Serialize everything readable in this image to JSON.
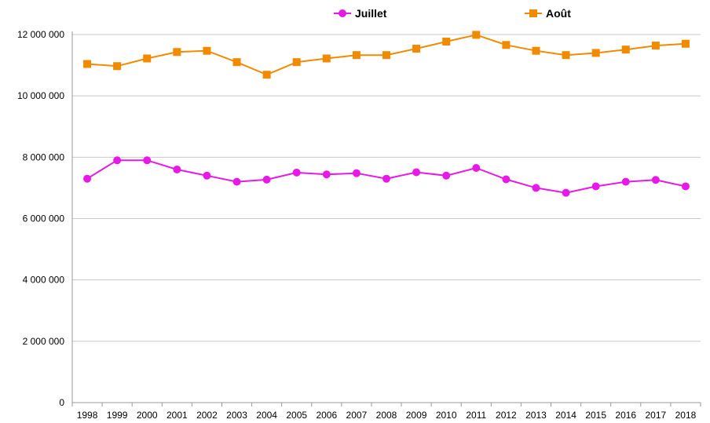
{
  "chart_data": {
    "type": "line",
    "title": "",
    "xlabel": "",
    "ylabel": "",
    "categories": [
      "1998",
      "1999",
      "2000",
      "2001",
      "2002",
      "2003",
      "2004",
      "2005",
      "2006",
      "2007",
      "2008",
      "2009",
      "2010",
      "2011",
      "2012",
      "2013",
      "2014",
      "2015",
      "2016",
      "2017",
      "2018"
    ],
    "y_ticks": [
      {
        "value": 0,
        "label": "0"
      },
      {
        "value": 2000000,
        "label": "2 000 000"
      },
      {
        "value": 4000000,
        "label": "4 000 000"
      },
      {
        "value": 6000000,
        "label": "6 000 000"
      },
      {
        "value": 8000000,
        "label": "8 000 000"
      },
      {
        "value": 10000000,
        "label": "10 000 000"
      },
      {
        "value": 12000000,
        "label": "12 000 000"
      }
    ],
    "ylim": [
      0,
      12000000
    ],
    "grid": "horizontal",
    "legend_position": "top",
    "series": [
      {
        "name": "Juillet",
        "color": "#e619e6",
        "marker": "circle",
        "values": [
          7300000,
          7900000,
          7900000,
          7600000,
          7400000,
          7200000,
          7270000,
          7500000,
          7440000,
          7480000,
          7300000,
          7510000,
          7400000,
          7650000,
          7280000,
          7000000,
          6840000,
          7050000,
          7200000,
          7260000,
          7050000
        ]
      },
      {
        "name": "Août",
        "color": "#f28a00",
        "marker": "square",
        "values": [
          11040000,
          10970000,
          11220000,
          11430000,
          11470000,
          11100000,
          10690000,
          11100000,
          11220000,
          11330000,
          11330000,
          11540000,
          11770000,
          11990000,
          11660000,
          11470000,
          11330000,
          11400000,
          11510000,
          11640000,
          11700000
        ]
      }
    ]
  }
}
